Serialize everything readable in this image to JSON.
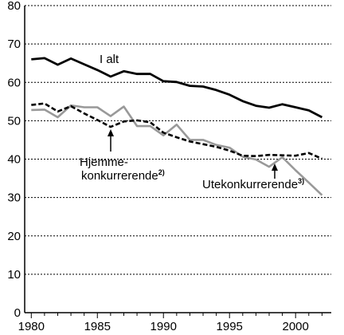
{
  "chart_data": {
    "type": "line",
    "title": "",
    "xlabel": "",
    "ylabel": "",
    "xlim": [
      1979.5,
      2002.7
    ],
    "ylim": [
      0,
      80
    ],
    "x_ticks": [
      1980,
      1985,
      1990,
      1995,
      2000
    ],
    "y_ticks": [
      0,
      10,
      20,
      30,
      40,
      50,
      60,
      70,
      80
    ],
    "grid": "horizontal dashed",
    "x": [
      1980,
      1981,
      1982,
      1983,
      1984,
      1985,
      1986,
      1987,
      1988,
      1989,
      1990,
      1991,
      1992,
      1993,
      1994,
      1995,
      1996,
      1997,
      1998,
      1999,
      2000,
      2001,
      2002
    ],
    "series": [
      {
        "name": "I alt",
        "color": "#000000",
        "style": "solid-thick",
        "values": [
          66,
          66.3,
          64.6,
          66.2,
          64.7,
          63.2,
          61.5,
          62.9,
          62.2,
          62.2,
          60.3,
          60.1,
          59.1,
          58.9,
          58.0,
          56.8,
          55.1,
          53.9,
          53.4,
          54.3,
          53.5,
          52.7,
          50.9
        ]
      },
      {
        "name": "Hjemme-konkurrerende",
        "color": "#000000",
        "style": "dashed",
        "values": [
          54.1,
          54.5,
          52.4,
          53.8,
          51.9,
          50.2,
          48.4,
          49.8,
          50.1,
          49.6,
          46.9,
          45.7,
          44.6,
          43.9,
          43.2,
          42.2,
          40.9,
          40.8,
          41.1,
          41.0,
          40.9,
          41.6,
          40.1
        ]
      },
      {
        "name": "Utekonkurrerende",
        "color": "#999999",
        "style": "solid",
        "values": [
          52.8,
          52.9,
          50.9,
          54.0,
          53.5,
          53.5,
          51.2,
          53.7,
          48.6,
          48.6,
          46.2,
          49.0,
          45.0,
          45.0,
          43.7,
          43.0,
          40.6,
          39.9,
          38.0,
          40.5,
          37.1,
          33.9,
          30.6
        ]
      }
    ],
    "annotations": {
      "i_alt": "I alt",
      "hjemme_line1": "Hjemme-",
      "hjemme_line2": "konkurrerende",
      "hjemme_sup": "2)",
      "ute": "Utekonkurrerende",
      "ute_sup": "3)"
    }
  }
}
